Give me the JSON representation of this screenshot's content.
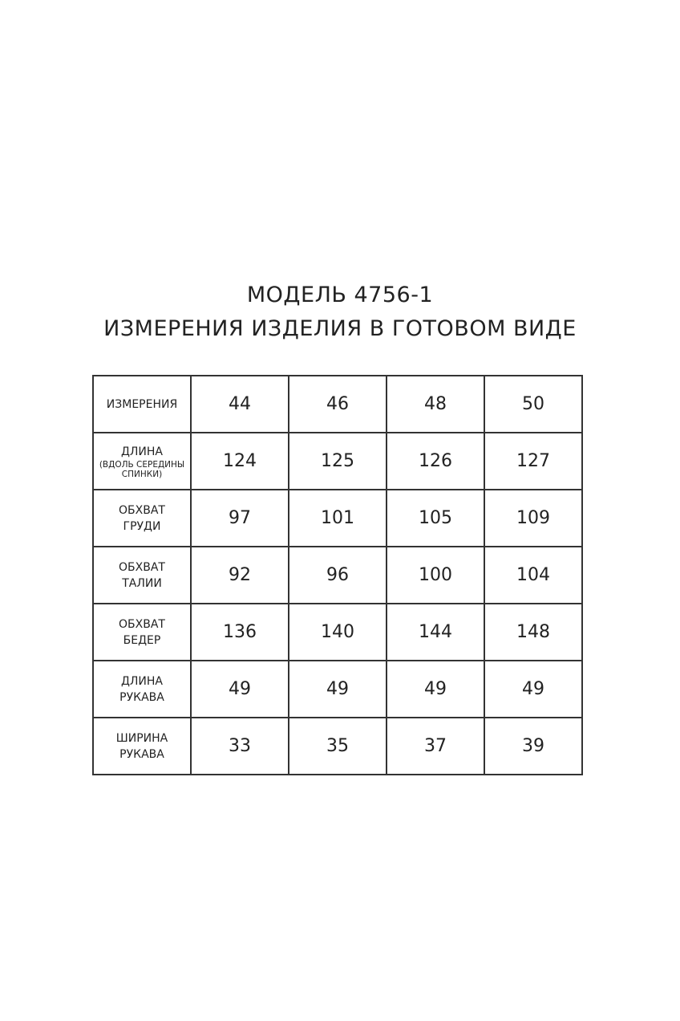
{
  "title": {
    "line1": "МОДЕЛЬ 4756-1",
    "line2": "ИЗМЕРЕНИЯ ИЗДЕЛИЯ В ГОТОВОМ ВИДЕ"
  },
  "table": {
    "rows": [
      {
        "label": "ИЗМЕРЕНИЯ",
        "label2": "",
        "sub": "",
        "values": [
          "44",
          "46",
          "48",
          "50"
        ]
      },
      {
        "label": "ДЛИНА",
        "label2": "",
        "sub": "(ВДОЛЬ СЕРЕДИНЫ СПИНКИ)",
        "values": [
          "124",
          "125",
          "126",
          "127"
        ]
      },
      {
        "label": "ОБХВАТ",
        "label2": "ГРУДИ",
        "sub": "",
        "values": [
          "97",
          "101",
          "105",
          "109"
        ]
      },
      {
        "label": "ОБХВАТ",
        "label2": "ТАЛИИ",
        "sub": "",
        "values": [
          "92",
          "96",
          "100",
          "104"
        ]
      },
      {
        "label": "ОБХВАТ",
        "label2": "БЕДЕР",
        "sub": "",
        "values": [
          "136",
          "140",
          "144",
          "148"
        ]
      },
      {
        "label": "ДЛИНА",
        "label2": "РУКАВА",
        "sub": "",
        "values": [
          "49",
          "49",
          "49",
          "49"
        ]
      },
      {
        "label": "ШИРИНА",
        "label2": "РУКАВА",
        "sub": "",
        "values": [
          "33",
          "35",
          "37",
          "39"
        ]
      }
    ]
  }
}
